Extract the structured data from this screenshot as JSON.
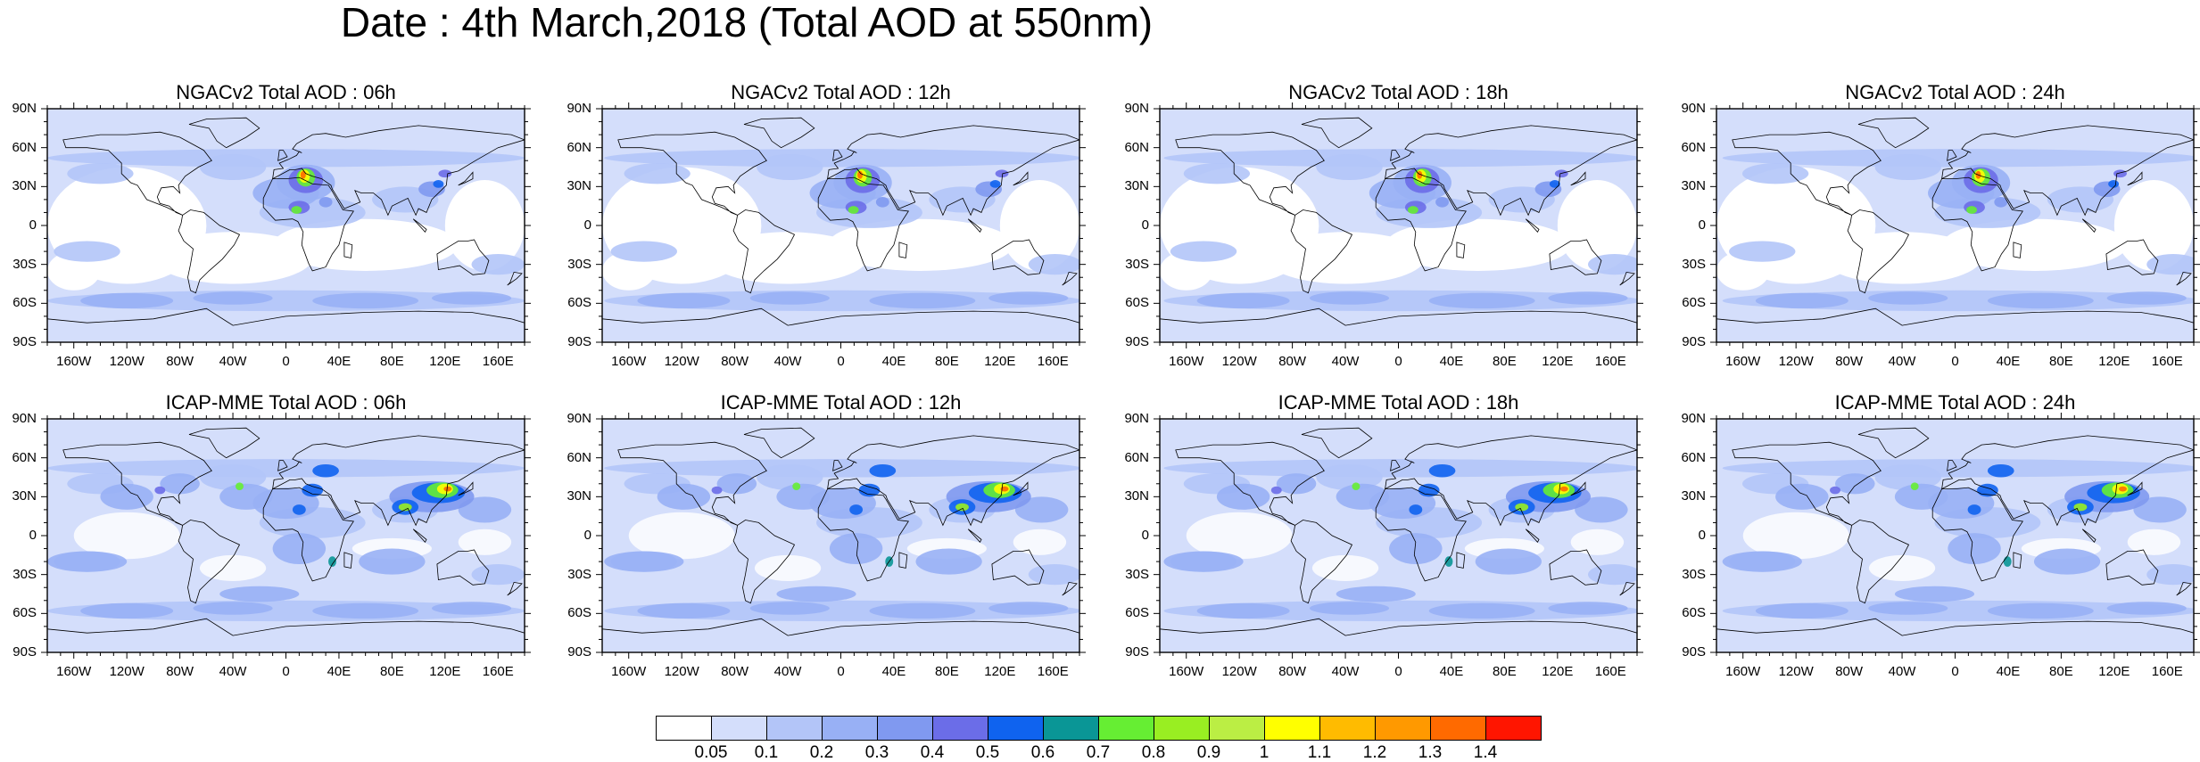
{
  "title": "Date : 4th March,2018 (Total AOD at 550nm)",
  "lat_ticks": [
    "90N",
    "60N",
    "30N",
    "0",
    "30S",
    "60S",
    "90S"
  ],
  "lon_ticks": [
    "160W",
    "120W",
    "80W",
    "40W",
    "0",
    "40E",
    "80E",
    "120E",
    "160E"
  ],
  "panels": [
    {
      "title": "NGACv2 Total AOD : 06h",
      "model": "NGACv2",
      "lead": "06h"
    },
    {
      "title": "NGACv2 Total AOD : 12h",
      "model": "NGACv2",
      "lead": "12h"
    },
    {
      "title": "NGACv2 Total AOD : 18h",
      "model": "NGACv2",
      "lead": "18h"
    },
    {
      "title": "NGACv2 Total AOD : 24h",
      "model": "NGACv2",
      "lead": "24h"
    },
    {
      "title": "ICAP-MME Total AOD : 06h",
      "model": "ICAP-MME",
      "lead": "06h"
    },
    {
      "title": "ICAP-MME Total AOD : 12h",
      "model": "ICAP-MME",
      "lead": "12h"
    },
    {
      "title": "ICAP-MME Total AOD : 18h",
      "model": "ICAP-MME",
      "lead": "18h"
    },
    {
      "title": "ICAP-MME Total AOD : 24h",
      "model": "ICAP-MME",
      "lead": "24h"
    }
  ],
  "colorbar": {
    "labels": [
      "0.05",
      "0.1",
      "0.2",
      "0.3",
      "0.4",
      "0.5",
      "0.6",
      "0.7",
      "0.8",
      "0.9",
      "1",
      "1.1",
      "1.2",
      "1.3",
      "1.4"
    ],
    "colors": [
      "#ffffff",
      "#d4defb",
      "#b3c5f8",
      "#98b0f5",
      "#8099f0",
      "#6b6de8",
      "#0f63ef",
      "#0a9696",
      "#66ee33",
      "#99ee22",
      "#bbee44",
      "#ffff00",
      "#ffbb00",
      "#ff9900",
      "#ff6a00",
      "#ff1500"
    ]
  }
}
